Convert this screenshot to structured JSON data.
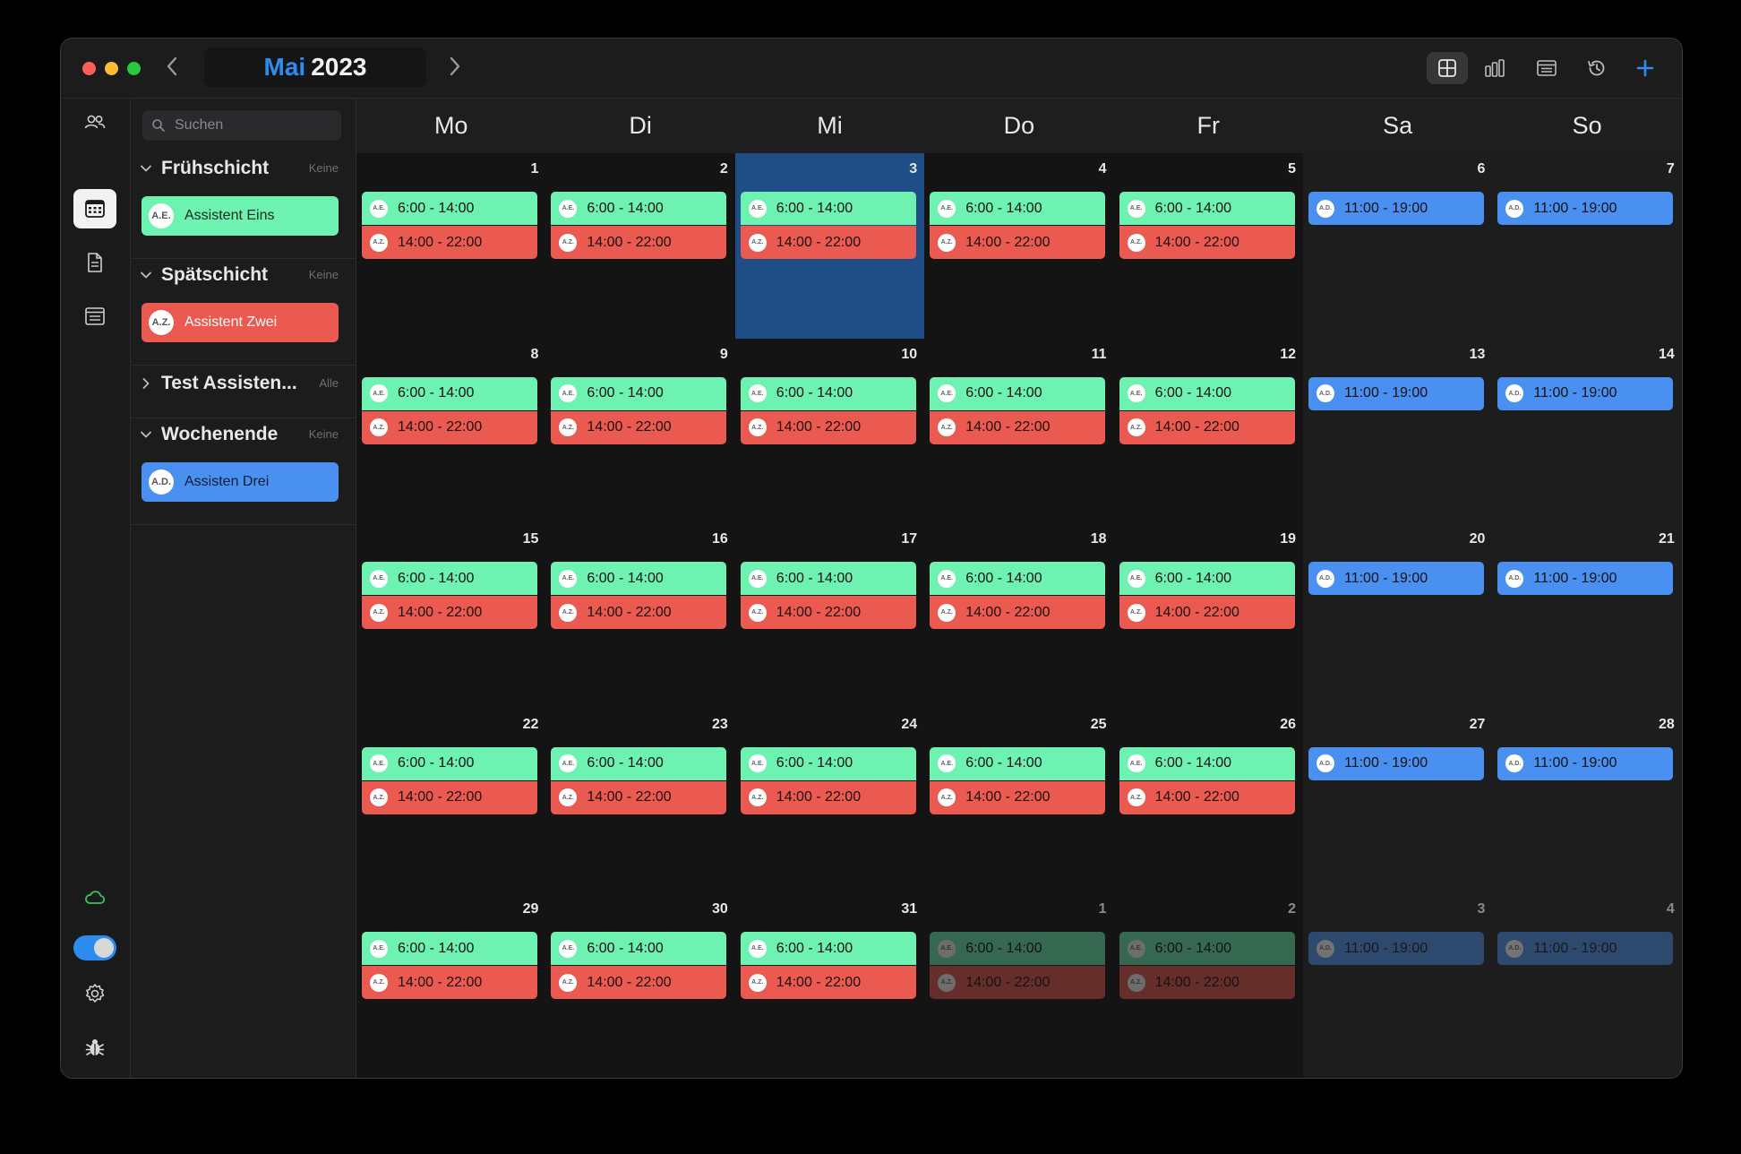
{
  "window": {
    "traffic_lights": [
      "close",
      "minimize",
      "zoom"
    ],
    "month": "Mai",
    "year": "2023",
    "prev_icon": "chevron-left-icon",
    "next_icon": "chevron-right-icon"
  },
  "toolbar": {
    "icons": [
      "grid-view-icon",
      "bar-chart-icon",
      "list-view-icon",
      "history-icon",
      "plus-icon"
    ],
    "active": "grid-view-icon",
    "accent": "#2d8cf0"
  },
  "iconbar": {
    "top": [
      "people-icon",
      "calendar-icon",
      "document-icon",
      "list-icon"
    ],
    "active": "calendar-icon",
    "bottom": [
      "cloud-icon",
      "toggle-switch",
      "gear-icon",
      "bug-icon"
    ],
    "toggle_on": true
  },
  "sidebar": {
    "search_placeholder": "Suchen",
    "groups": [
      {
        "title": "Frühschicht",
        "badge": "Keine",
        "expanded": true,
        "members": [
          {
            "initials": "A.E.",
            "name": "Assistent Eins",
            "color": "#6ef2b2"
          }
        ]
      },
      {
        "title": "Spätschicht",
        "badge": "Keine",
        "expanded": true,
        "members": [
          {
            "initials": "A.Z.",
            "name": "Assistent Zwei",
            "color": "#ea5a50"
          }
        ]
      },
      {
        "title": "Test Assisten...",
        "badge": "Alle",
        "expanded": false,
        "members": []
      },
      {
        "title": "Wochenende",
        "badge": "Keine",
        "expanded": true,
        "members": [
          {
            "initials": "A.D.",
            "name": "Assisten Drei",
            "color": "#4a90f0"
          }
        ]
      }
    ]
  },
  "calendar": {
    "weekdays": [
      "Mo",
      "Di",
      "Mi",
      "Do",
      "Fr",
      "Sa",
      "So"
    ],
    "today": 3,
    "colors": {
      "early": "#6ef2b2",
      "late": "#ea5a50",
      "weekend": "#4a90f0",
      "today": "#1f4e86"
    },
    "shift_templates": {
      "weekday": [
        {
          "initials": "A.E.",
          "time": "6:00 - 14:00",
          "kind": "early"
        },
        {
          "initials": "A.Z.",
          "time": "14:00 - 22:00",
          "kind": "late"
        }
      ],
      "weekend": [
        {
          "initials": "A.D.",
          "time": "11:00 - 19:00",
          "kind": "weekend"
        }
      ]
    },
    "weeks": [
      [
        {
          "d": "1",
          "t": "weekday"
        },
        {
          "d": "2",
          "t": "weekday"
        },
        {
          "d": "3",
          "t": "weekday",
          "today": true
        },
        {
          "d": "4",
          "t": "weekday"
        },
        {
          "d": "5",
          "t": "weekday"
        },
        {
          "d": "6",
          "t": "weekend"
        },
        {
          "d": "7",
          "t": "weekend"
        }
      ],
      [
        {
          "d": "8",
          "t": "weekday"
        },
        {
          "d": "9",
          "t": "weekday"
        },
        {
          "d": "10",
          "t": "weekday"
        },
        {
          "d": "11",
          "t": "weekday"
        },
        {
          "d": "12",
          "t": "weekday"
        },
        {
          "d": "13",
          "t": "weekend"
        },
        {
          "d": "14",
          "t": "weekend"
        }
      ],
      [
        {
          "d": "15",
          "t": "weekday"
        },
        {
          "d": "16",
          "t": "weekday"
        },
        {
          "d": "17",
          "t": "weekday"
        },
        {
          "d": "18",
          "t": "weekday"
        },
        {
          "d": "19",
          "t": "weekday"
        },
        {
          "d": "20",
          "t": "weekend"
        },
        {
          "d": "21",
          "t": "weekend"
        }
      ],
      [
        {
          "d": "22",
          "t": "weekday"
        },
        {
          "d": "23",
          "t": "weekday"
        },
        {
          "d": "24",
          "t": "weekday"
        },
        {
          "d": "25",
          "t": "weekday"
        },
        {
          "d": "26",
          "t": "weekday"
        },
        {
          "d": "27",
          "t": "weekend"
        },
        {
          "d": "28",
          "t": "weekend"
        }
      ],
      [
        {
          "d": "29",
          "t": "weekday"
        },
        {
          "d": "30",
          "t": "weekday"
        },
        {
          "d": "31",
          "t": "weekday"
        },
        {
          "d": "1",
          "t": "weekday",
          "other": true
        },
        {
          "d": "2",
          "t": "weekday",
          "other": true
        },
        {
          "d": "3",
          "t": "weekend",
          "other": true
        },
        {
          "d": "4",
          "t": "weekend",
          "other": true
        }
      ]
    ]
  }
}
